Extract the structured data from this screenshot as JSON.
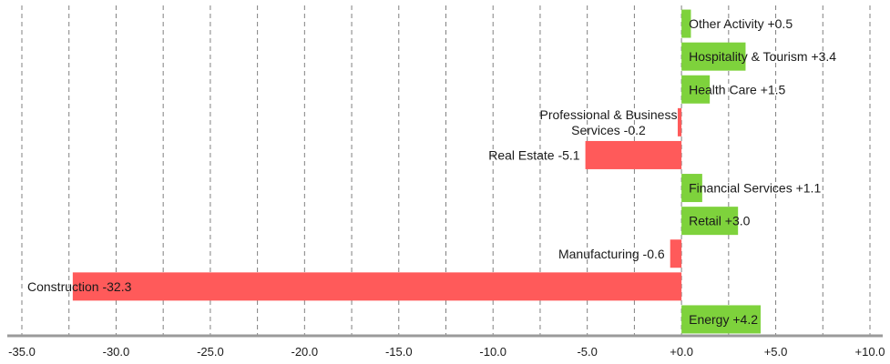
{
  "chart_data": {
    "type": "bar",
    "orientation": "horizontal",
    "title": "",
    "xlabel": "",
    "ylabel": "",
    "xlim": [
      -35,
      10
    ],
    "grid": "vertical-dashed",
    "x_ticks": [
      "-35.0",
      "-30.0",
      "-25.0",
      "-20.0",
      "-15.0",
      "-10.0",
      "-5.0",
      "+0.0",
      "+5.0",
      "+10.0"
    ],
    "x_tick_values": [
      -35,
      -30,
      -25,
      -20,
      -15,
      -10,
      -5,
      0,
      5,
      10
    ],
    "colors": {
      "positive": "#7ed23c",
      "negative": "#ff5a5a",
      "axis": "#9a9a9a",
      "grid": "#808080"
    },
    "categories": [
      "Other Activity",
      "Hospitality & Tourism",
      "Health Care",
      "Professional & Business Services",
      "Real Estate",
      "Financial Services",
      "Retail",
      "Manufacturing",
      "Construction",
      "Energy"
    ],
    "values": [
      0.5,
      3.4,
      1.5,
      -0.2,
      -5.1,
      1.1,
      3.0,
      -0.6,
      -32.3,
      4.2
    ],
    "data_labels": [
      [
        "Other Activity +0.5"
      ],
      [
        "Hospitality & Tourism +3.4"
      ],
      [
        "Health Care +1.5"
      ],
      [
        "Professional & Business",
        "Services -0.2"
      ],
      [
        "Real Estate -5.1"
      ],
      [
        "Financial Services +1.1"
      ],
      [
        "Retail +3.0"
      ],
      [
        "Manufacturing -0.6"
      ],
      [
        "Construction -32.3"
      ],
      [
        "Energy +4.2"
      ]
    ]
  }
}
